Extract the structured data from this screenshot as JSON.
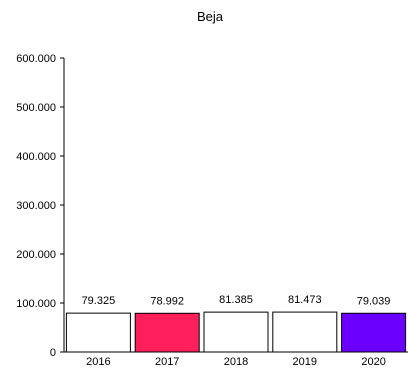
{
  "chart_data": {
    "type": "bar",
    "title": "Beja",
    "xlabel": "",
    "ylabel": "",
    "categories": [
      "2016",
      "2017",
      "2018",
      "2019",
      "2020"
    ],
    "values": [
      79325,
      78992,
      81385,
      81473,
      79039
    ],
    "data_labels": [
      "79.325",
      "78.992",
      "81.385",
      "81.473",
      "79.039"
    ],
    "bar_colors": [
      "#ffffff",
      "#ff1f5a",
      "#ffffff",
      "#ffffff",
      "#6a00ff"
    ],
    "bar_stroke": "#000000",
    "ylim": [
      0,
      600000
    ],
    "yticks": [
      0,
      100000,
      200000,
      300000,
      400000,
      500000,
      600000
    ],
    "ytick_labels": [
      "0",
      "100.000",
      "200.000",
      "300.000",
      "400.000",
      "500.000",
      "600.000"
    ],
    "grid": false,
    "legend": "none"
  }
}
